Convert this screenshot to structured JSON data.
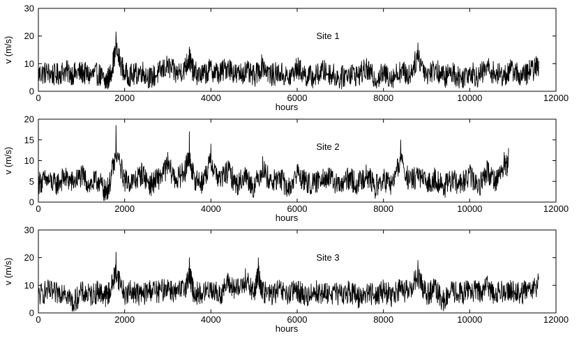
{
  "chart_data": [
    {
      "type": "line",
      "title": "Site 1",
      "xlabel": "hours",
      "ylabel": "v (m/s)",
      "xlim": [
        0,
        12000
      ],
      "ylim": [
        0,
        30
      ],
      "xticks": [
        0,
        2000,
        4000,
        6000,
        8000,
        10000,
        12000
      ],
      "yticks": [
        0,
        10,
        20,
        30
      ],
      "series": [
        {
          "x": [
            0,
            200,
            400,
            600,
            800,
            1000,
            1200,
            1400,
            1550,
            1650,
            1800,
            2000,
            2200,
            2400,
            2600,
            2800,
            3000,
            3200,
            3400,
            3500,
            3600,
            3800,
            4000,
            4200,
            4400,
            4600,
            4800,
            5000,
            5200,
            5400,
            5600,
            5800,
            6000,
            6200,
            6400,
            6600,
            6800,
            7000,
            7200,
            7400,
            7600,
            7800,
            8000,
            8200,
            8400,
            8600,
            8800,
            9000,
            9200,
            9400,
            9600,
            9800,
            10000,
            10200,
            10400,
            10600,
            10800,
            11000,
            11200,
            11400,
            11600
          ],
          "values": [
            6,
            7,
            5,
            8,
            6,
            7,
            5,
            6,
            1,
            4,
            21.5,
            6,
            5,
            8,
            3,
            7,
            11,
            6,
            10,
            16,
            7,
            5,
            9,
            6,
            11,
            5,
            8,
            4,
            12,
            5,
            7,
            3,
            10,
            5,
            4,
            8,
            6,
            3,
            7,
            5,
            9,
            3,
            6,
            4,
            8,
            5,
            17.5,
            6,
            9,
            4,
            7,
            3,
            8,
            4,
            10,
            6,
            5,
            9,
            4,
            8,
            11
          ]
        }
      ]
    },
    {
      "type": "line",
      "title": "Site 2",
      "xlabel": "hours",
      "ylabel": "v (m/s)",
      "xlim": [
        0,
        12000
      ],
      "ylim": [
        0,
        20
      ],
      "xticks": [
        0,
        2000,
        4000,
        6000,
        8000,
        10000,
        12000
      ],
      "yticks": [
        0,
        5,
        10,
        15,
        20
      ],
      "series": [
        {
          "x": [
            0,
            200,
            400,
            600,
            800,
            1000,
            1200,
            1400,
            1550,
            1650,
            1800,
            2000,
            2200,
            2400,
            2600,
            2800,
            3000,
            3200,
            3400,
            3500,
            3600,
            3800,
            4000,
            4200,
            4400,
            4600,
            4800,
            5000,
            5200,
            5400,
            5600,
            5800,
            6000,
            6200,
            6400,
            6600,
            6800,
            7000,
            7200,
            7400,
            7600,
            7800,
            8000,
            8200,
            8400,
            8600,
            8800,
            9000,
            9200,
            9400,
            9600,
            9800,
            10000,
            10200,
            10400,
            10600,
            10800,
            10900
          ],
          "values": [
            5,
            6,
            4,
            7,
            5,
            8,
            4,
            6,
            0.5,
            4,
            18.5,
            6,
            5,
            9,
            4,
            7,
            12,
            6,
            10,
            17,
            7,
            5,
            14,
            6,
            10,
            4,
            8,
            3,
            11,
            5,
            7,
            2,
            9,
            5,
            4,
            8,
            6,
            3,
            7,
            4,
            9,
            3,
            6,
            4,
            15,
            5,
            8,
            4,
            7,
            3,
            6,
            4,
            8,
            3,
            10,
            6,
            12,
            13
          ]
        }
      ]
    },
    {
      "type": "line",
      "title": "Site 3",
      "xlabel": "hours",
      "ylabel": "v (m/s)",
      "xlim": [
        0,
        12000
      ],
      "ylim": [
        0,
        30
      ],
      "xticks": [
        0,
        2000,
        4000,
        6000,
        8000,
        10000,
        12000
      ],
      "yticks": [
        0,
        10,
        20,
        30
      ],
      "series": [
        {
          "x": [
            0,
            200,
            400,
            600,
            800,
            1000,
            1200,
            1400,
            1550,
            1650,
            1800,
            2000,
            2200,
            2400,
            2600,
            2800,
            3000,
            3200,
            3400,
            3500,
            3600,
            3800,
            4000,
            4200,
            4400,
            4600,
            4800,
            5000,
            5100,
            5200,
            5400,
            5600,
            5800,
            6000,
            6200,
            6400,
            6600,
            6800,
            7000,
            7200,
            7400,
            7600,
            7800,
            8000,
            8200,
            8400,
            8600,
            8800,
            9000,
            9200,
            9400,
            9600,
            9800,
            10000,
            10200,
            10400,
            10600,
            10800,
            11000,
            11200,
            11400,
            11600
          ],
          "values": [
            6,
            9,
            7,
            10,
            1,
            8,
            6,
            9,
            6,
            8,
            22,
            7,
            9,
            6,
            10,
            8,
            12,
            7,
            11,
            20,
            8,
            7,
            11,
            6,
            14,
            9,
            16,
            7,
            20,
            8,
            7,
            9,
            6,
            10,
            5,
            9,
            7,
            8,
            6,
            9,
            5,
            8,
            7,
            9,
            6,
            10,
            8,
            19,
            7,
            10,
            2,
            9,
            7,
            10,
            8,
            12,
            7,
            10,
            9,
            7,
            11,
            13
          ]
        }
      ]
    }
  ]
}
